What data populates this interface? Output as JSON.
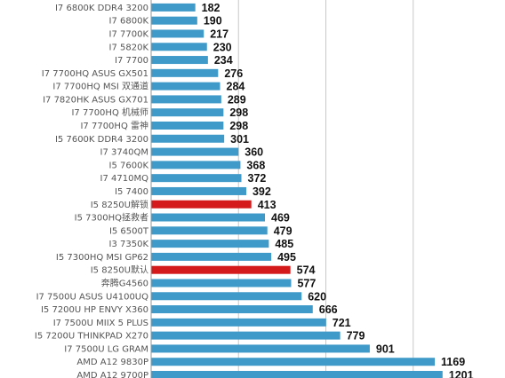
{
  "chart_data": {
    "type": "bar",
    "orientation": "horizontal",
    "title": "",
    "xlabel": "",
    "ylabel": "",
    "categories": [
      "I7 6800K DDR4 3200",
      "I7 6800K",
      "I7 7700K",
      "I7 5820K",
      "I7 7700",
      "I7 7700HQ ASUS GX501",
      "I7 7700HQ MSI 双通道",
      "I7 7820HK ASUS GX701",
      "I7 7700HQ  机械师",
      "I7 7700HQ 雷神",
      "I5 7600K DDR4 3200",
      "I7 3740QM",
      "I5 7600K",
      "I7 4710MQ",
      "I5 7400",
      "I5 8250U解锁",
      "I5 7300HQ拯救者",
      "I5 6500T",
      "I3 7350K",
      "I5 7300HQ MSI GP62",
      "I5 8250U默认",
      "奔腾G4560",
      "I7 7500U ASUS U4100UQ",
      "I5 7200U HP ENVY X360",
      "I7 7500U MIIX 5 PLUS",
      "I5 7200U THINKPAD X270",
      "I7 7500U LG GRAM",
      "AMD A12  9830P",
      "AMD A12 9700P"
    ],
    "values": [
      182,
      190,
      217,
      230,
      234,
      276,
      284,
      289,
      298,
      298,
      301,
      360,
      368,
      372,
      392,
      413,
      469,
      479,
      485,
      495,
      574,
      577,
      620,
      666,
      721,
      779,
      901,
      1169,
      1201
    ],
    "value_labels": [
      "182",
      "190",
      "217",
      "230",
      "234",
      "276",
      "284",
      "289",
      "298",
      "298",
      "301",
      "360",
      "368",
      "372",
      "392",
      "413",
      "469",
      "479",
      "485",
      "495",
      "574",
      "577",
      "620",
      "666",
      "721",
      "779",
      "901",
      "1169",
      "1201"
    ],
    "highlighted": [
      "I5 8250U解锁",
      "I5 8250U默认"
    ],
    "colors": {
      "bar": "#3f9ac9",
      "highlight": "#d41a1a",
      "grid": "#c8c8c8",
      "axis": "#9a9a9a"
    },
    "xlim": [
      0,
      1440
    ],
    "grid": true,
    "legend": "none"
  }
}
